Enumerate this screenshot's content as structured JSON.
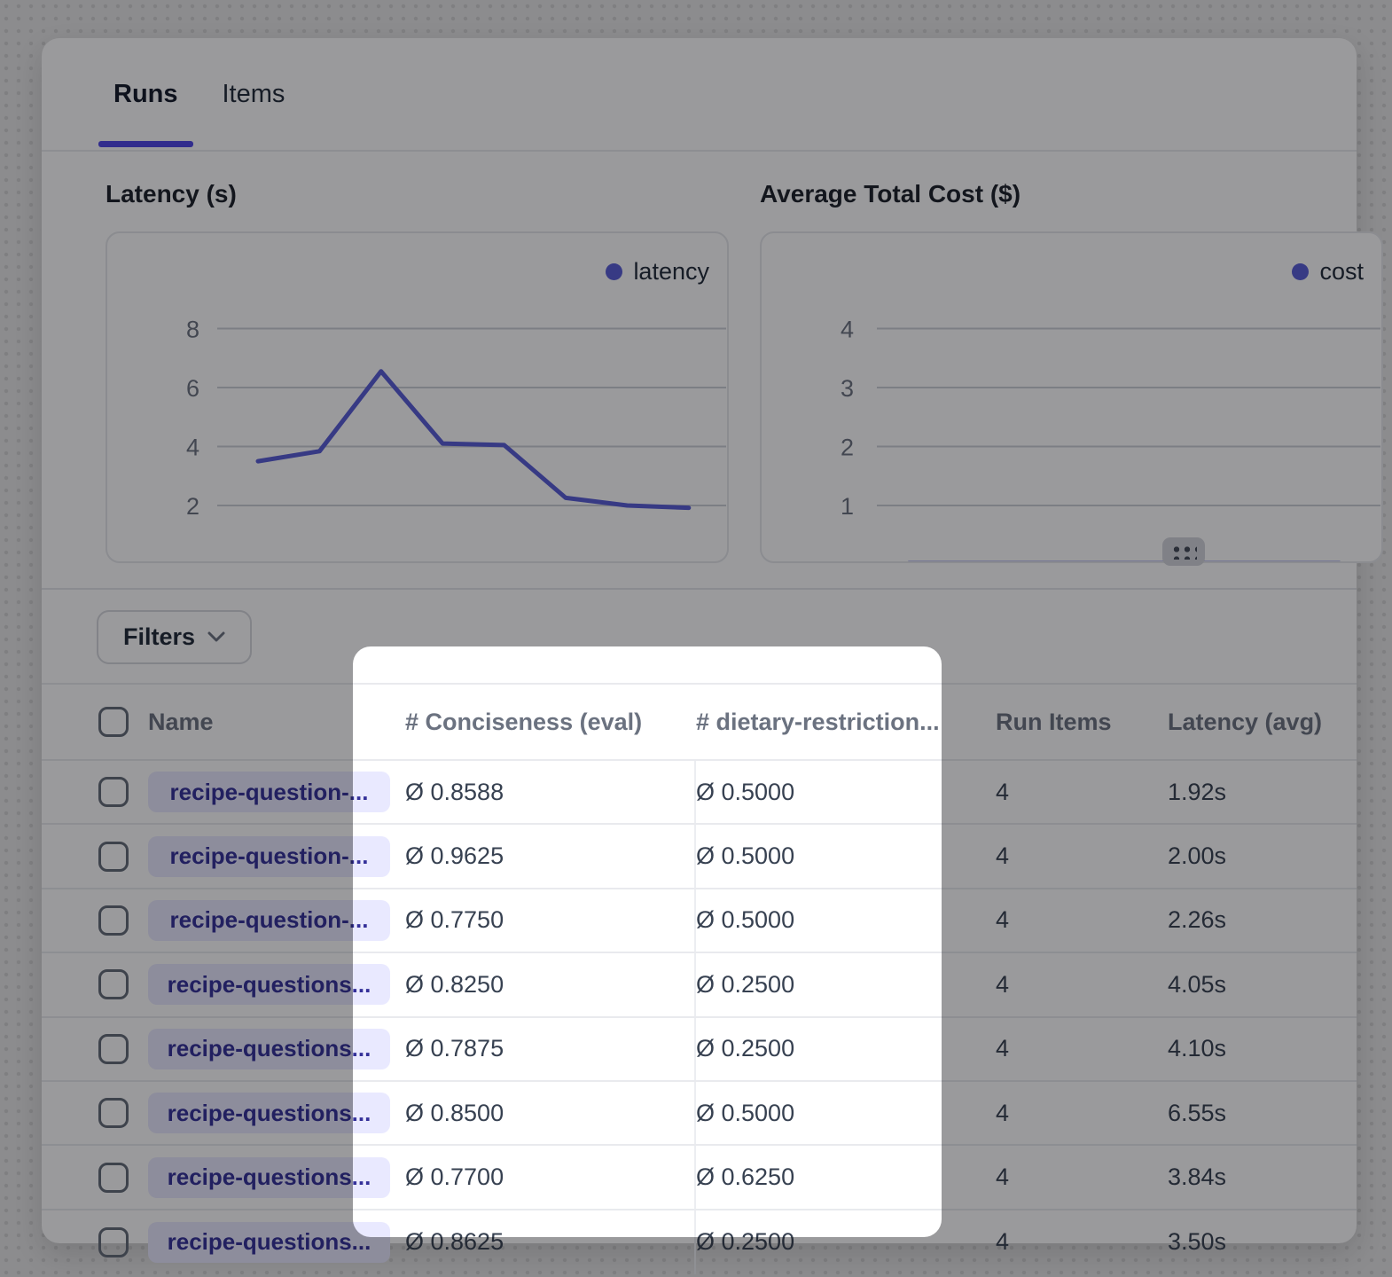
{
  "tabs": [
    {
      "label": "Runs",
      "active": true
    },
    {
      "label": "Items",
      "active": false
    }
  ],
  "charts": [
    {
      "title": "Latency (s)",
      "legend_label": "latency"
    },
    {
      "title": "Average Total Cost ($)",
      "legend_label": "cost"
    }
  ],
  "chart_data": [
    {
      "type": "line",
      "title": "Latency (s)",
      "x": [
        1,
        2,
        3,
        4,
        5,
        6,
        7,
        8
      ],
      "series": [
        {
          "name": "latency",
          "values": [
            3.5,
            3.84,
            6.55,
            4.1,
            4.05,
            2.26,
            2.0,
            1.92
          ]
        }
      ],
      "yticks": [
        2,
        4,
        6,
        8
      ],
      "ylim": [
        0,
        9.6
      ],
      "grid": true,
      "legend_position": "top-right",
      "line_color": "#585cd6"
    },
    {
      "type": "line",
      "title": "Average Total Cost ($)",
      "x": [
        1,
        2,
        3,
        4,
        5,
        6,
        7,
        8
      ],
      "series": [
        {
          "name": "cost",
          "values": [
            0.02,
            0.02,
            0.02,
            0.02,
            0.02,
            0.02,
            0.02,
            0.02
          ]
        }
      ],
      "yticks": [
        1,
        2,
        3,
        4
      ],
      "ylim": [
        0,
        4.8
      ],
      "grid": true,
      "legend_position": "top-right",
      "line_color": "#585cd6"
    }
  ],
  "filters": {
    "label": "Filters"
  },
  "table": {
    "columns": [
      "Name",
      "# Conciseness (eval)",
      "# dietary-restriction...",
      "Run Items",
      "Latency (avg)"
    ],
    "rows": [
      {
        "name": "recipe-question-...",
        "conciseness": "Ø 0.8588",
        "dietary": "Ø 0.5000",
        "run_items": "4",
        "latency_avg": "1.92s"
      },
      {
        "name": "recipe-question-...",
        "conciseness": "Ø 0.9625",
        "dietary": "Ø 0.5000",
        "run_items": "4",
        "latency_avg": "2.00s"
      },
      {
        "name": "recipe-question-...",
        "conciseness": "Ø 0.7750",
        "dietary": "Ø 0.5000",
        "run_items": "4",
        "latency_avg": "2.26s"
      },
      {
        "name": "recipe-questions...",
        "conciseness": "Ø 0.8250",
        "dietary": "Ø 0.2500",
        "run_items": "4",
        "latency_avg": "4.05s"
      },
      {
        "name": "recipe-questions...",
        "conciseness": "Ø 0.7875",
        "dietary": "Ø 0.2500",
        "run_items": "4",
        "latency_avg": "4.10s"
      },
      {
        "name": "recipe-questions...",
        "conciseness": "Ø 0.8500",
        "dietary": "Ø 0.5000",
        "run_items": "4",
        "latency_avg": "6.55s"
      },
      {
        "name": "recipe-questions...",
        "conciseness": "Ø 0.7700",
        "dietary": "Ø 0.6250",
        "run_items": "4",
        "latency_avg": "3.84s"
      },
      {
        "name": "recipe-questions...",
        "conciseness": "Ø 0.8625",
        "dietary": "Ø 0.2500",
        "run_items": "4",
        "latency_avg": "3.50s"
      }
    ]
  },
  "colors": {
    "accent_indigo": "#585cd6",
    "tab_underline": "#4f46e5",
    "pill_bg": "#e9e9ff",
    "pill_text": "#343099",
    "dim_overlay": "rgba(10,10,14,0.41)"
  }
}
